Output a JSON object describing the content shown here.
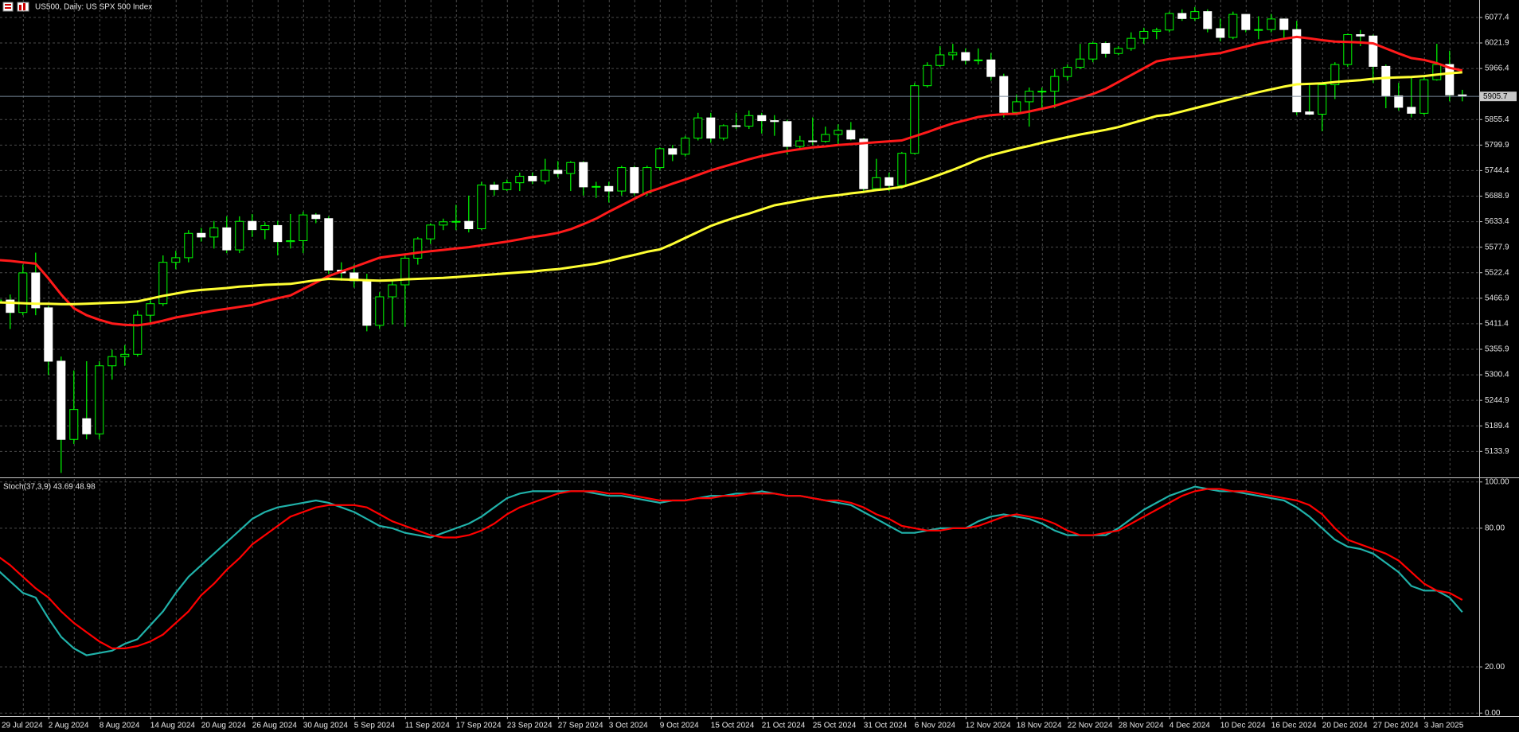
{
  "chart_data": [
    {
      "type": "candlestick",
      "title": "US500, Daily:  US SPX 500 Index",
      "categories": [
        "29 Jul 2024",
        null,
        null,
        null,
        "2 Aug 2024",
        null,
        null,
        null,
        "8 Aug 2024",
        null,
        null,
        null,
        "14 Aug 2024",
        null,
        null,
        null,
        "20 Aug 2024",
        null,
        null,
        null,
        "26 Aug 2024",
        null,
        null,
        null,
        "30 Aug 2024",
        null,
        null,
        null,
        "5 Sep 2024",
        null,
        null,
        null,
        "11 Sep 2024",
        null,
        null,
        null,
        "17 Sep 2024",
        null,
        null,
        null,
        "23 Sep 2024",
        null,
        null,
        null,
        "27 Sep 2024",
        null,
        null,
        null,
        "3 Oct 2024",
        null,
        null,
        null,
        "9 Oct 2024",
        null,
        null,
        null,
        "15 Oct 2024",
        null,
        null,
        null,
        "21 Oct 2024",
        null,
        null,
        null,
        "25 Oct 2024",
        null,
        null,
        null,
        "31 Oct 2024",
        null,
        null,
        null,
        "6 Nov 2024",
        null,
        null,
        null,
        "12 Nov 2024",
        null,
        null,
        null,
        "18 Nov 2024",
        null,
        null,
        null,
        "22 Nov 2024",
        null,
        null,
        null,
        "28 Nov 2024",
        null,
        null,
        null,
        "4 Dec 2024",
        null,
        null,
        null,
        "10 Dec 2024",
        null,
        null,
        null,
        "16 Dec 2024",
        null,
        null,
        null,
        "20 Dec 2024",
        null,
        null,
        null,
        "27 Dec 2024",
        null,
        null,
        null,
        "3 Jan 2025",
        null,
        null,
        null
      ],
      "open": [
        5460,
        5463,
        5436,
        5522,
        5446,
        5330,
        5160,
        5205,
        5172,
        5320,
        5340,
        5345,
        5430,
        5455,
        5545,
        5555,
        5608,
        5600,
        5620,
        5572,
        5634,
        5616,
        5625,
        5590,
        5592,
        5648,
        5640,
        5528,
        5522,
        5505,
        5408,
        5470,
        5496,
        5554,
        5596,
        5626,
        5633,
        5634,
        5618,
        5713,
        5703,
        5718,
        5732,
        5722,
        5745,
        5738,
        5762,
        5709,
        5710,
        5700,
        5751,
        5696,
        5751,
        5792,
        5780,
        5815,
        5859,
        5815,
        5842,
        5841,
        5864,
        5853,
        5851,
        5797,
        5809,
        5808,
        5823,
        5832,
        5813,
        5705,
        5729,
        5712,
        5782,
        5929,
        5973,
        5996,
        6001,
        5984,
        5985,
        5949,
        5871,
        5894,
        5917,
        5917,
        5949,
        5969,
        5987,
        6021,
        5999,
        6010,
        6032,
        6047,
        6050,
        6086,
        6075,
        6090,
        6053,
        6034,
        6084,
        6051,
        6051,
        6074,
        6051,
        5872,
        5867,
        5931,
        5975,
        6040,
        6037,
        5971,
        5907,
        5882,
        5869,
        5942,
        5975,
        5909
      ],
      "high": [
        5480,
        5475,
        5540,
        5566,
        5450,
        5340,
        5310,
        5330,
        5330,
        5355,
        5365,
        5440,
        5465,
        5560,
        5570,
        5615,
        5620,
        5635,
        5645,
        5645,
        5650,
        5632,
        5635,
        5650,
        5655,
        5652,
        5645,
        5545,
        5540,
        5520,
        5480,
        5505,
        5560,
        5600,
        5630,
        5640,
        5670,
        5690,
        5720,
        5720,
        5725,
        5740,
        5740,
        5770,
        5765,
        5765,
        5765,
        5720,
        5720,
        5755,
        5755,
        5755,
        5795,
        5800,
        5820,
        5870,
        5870,
        5845,
        5870,
        5875,
        5870,
        5865,
        5855,
        5820,
        5860,
        5840,
        5845,
        5850,
        5815,
        5770,
        5740,
        5785,
        5935,
        5980,
        6015,
        6020,
        6010,
        6010,
        6000,
        5955,
        5910,
        5925,
        5925,
        5965,
        5975,
        6020,
        6025,
        6025,
        6015,
        6045,
        6055,
        6055,
        6090,
        6095,
        6100,
        6095,
        6075,
        6090,
        6085,
        6080,
        6085,
        6075,
        6070,
        5935,
        5935,
        5980,
        6042,
        6050,
        6040,
        5975,
        5935,
        5950,
        5950,
        6020,
        6005,
        5920
      ],
      "low": [
        5440,
        5400,
        5430,
        5430,
        5300,
        5087,
        5150,
        5160,
        5160,
        5290,
        5320,
        5340,
        5410,
        5450,
        5530,
        5545,
        5590,
        5575,
        5565,
        5565,
        5600,
        5595,
        5560,
        5575,
        5565,
        5630,
        5520,
        5505,
        5490,
        5395,
        5400,
        5410,
        5405,
        5540,
        5585,
        5615,
        5615,
        5610,
        5615,
        5690,
        5700,
        5700,
        5715,
        5715,
        5730,
        5700,
        5690,
        5685,
        5675,
        5690,
        5690,
        5690,
        5745,
        5765,
        5775,
        5810,
        5805,
        5810,
        5835,
        5835,
        5825,
        5820,
        5780,
        5790,
        5800,
        5805,
        5800,
        5810,
        5700,
        5700,
        5700,
        5705,
        5780,
        5925,
        5970,
        5985,
        5975,
        5975,
        5940,
        5860,
        5865,
        5840,
        5880,
        5880,
        5940,
        5965,
        5980,
        5990,
        5995,
        6005,
        6020,
        6030,
        6045,
        6070,
        6070,
        6045,
        6025,
        6030,
        6045,
        6030,
        6045,
        6030,
        5865,
        5865,
        5830,
        5900,
        5970,
        6015,
        5935,
        5880,
        5875,
        5860,
        5865,
        5940,
        5895,
        5895
      ],
      "close": [
        5463,
        5436,
        5522,
        5446,
        5330,
        5160,
        5225,
        5172,
        5320,
        5340,
        5345,
        5430,
        5455,
        5545,
        5555,
        5608,
        5600,
        5620,
        5572,
        5634,
        5616,
        5625,
        5590,
        5592,
        5648,
        5640,
        5528,
        5522,
        5505,
        5408,
        5470,
        5496,
        5554,
        5596,
        5626,
        5633,
        5634,
        5618,
        5713,
        5703,
        5718,
        5732,
        5722,
        5745,
        5738,
        5762,
        5709,
        5710,
        5700,
        5751,
        5696,
        5751,
        5792,
        5780,
        5815,
        5859,
        5815,
        5842,
        5841,
        5864,
        5853,
        5851,
        5797,
        5809,
        5808,
        5823,
        5832,
        5813,
        5705,
        5729,
        5712,
        5782,
        5929,
        5973,
        5996,
        6001,
        5984,
        5985,
        5949,
        5871,
        5894,
        5917,
        5917,
        5949,
        5969,
        5987,
        6021,
        5999,
        6010,
        6032,
        6047,
        6050,
        6086,
        6075,
        6090,
        6053,
        6034,
        6084,
        6051,
        6051,
        6074,
        6051,
        5872,
        5867,
        5931,
        5975,
        6040,
        6037,
        5971,
        5907,
        5882,
        5869,
        5942,
        5975,
        5909,
        5906
      ],
      "up_color": "#000000",
      "down_color": "#ffffff",
      "wick_color": "#00ff00",
      "series": [
        {
          "color": "#ff1a1a",
          "values": [
            5550,
            5548,
            5545,
            5542,
            5510,
            5475,
            5445,
            5430,
            5420,
            5412,
            5409,
            5408,
            5412,
            5418,
            5425,
            5430,
            5435,
            5440,
            5444,
            5448,
            5452,
            5460,
            5467,
            5473,
            5487,
            5501,
            5515,
            5525,
            5535,
            5545,
            5555,
            5559,
            5562,
            5566,
            5569,
            5572,
            5575,
            5578,
            5582,
            5586,
            5590,
            5595,
            5600,
            5604,
            5609,
            5617,
            5628,
            5640,
            5655,
            5669,
            5683,
            5697,
            5706,
            5716,
            5725,
            5735,
            5745,
            5753,
            5761,
            5769,
            5776,
            5782,
            5787,
            5791,
            5795,
            5797,
            5800,
            5802,
            5804,
            5806,
            5808,
            5810,
            5819,
            5828,
            5838,
            5847,
            5854,
            5861,
            5865,
            5867,
            5868,
            5873,
            5879,
            5885,
            5894,
            5902,
            5911,
            5922,
            5937,
            5952,
            5967,
            5982,
            5987,
            5990,
            5993,
            5997,
            6000,
            6007,
            6014,
            6021,
            6026,
            6031,
            6035,
            6032,
            6028,
            6025,
            6024,
            6023,
            6021,
            6010,
            5999,
            5989,
            5985,
            5978,
            5968,
            5962
          ]
        },
        {
          "color": "#ffff33",
          "values": [
            5458,
            5457,
            5456,
            5455,
            5455,
            5454,
            5454,
            5455,
            5456,
            5457,
            5458,
            5460,
            5466,
            5472,
            5477,
            5482,
            5485,
            5487,
            5489,
            5492,
            5494,
            5496,
            5497,
            5498,
            5502,
            5506,
            5509,
            5508,
            5507,
            5506,
            5505,
            5506,
            5508,
            5509,
            5510,
            5511,
            5513,
            5515,
            5517,
            5519,
            5521,
            5523,
            5525,
            5528,
            5530,
            5534,
            5538,
            5542,
            5548,
            5555,
            5561,
            5568,
            5573,
            5585,
            5598,
            5611,
            5624,
            5634,
            5643,
            5651,
            5660,
            5669,
            5674,
            5679,
            5684,
            5688,
            5691,
            5695,
            5698,
            5702,
            5705,
            5709,
            5717,
            5726,
            5736,
            5746,
            5757,
            5769,
            5778,
            5785,
            5792,
            5798,
            5805,
            5811,
            5817,
            5823,
            5828,
            5833,
            5839,
            5847,
            5855,
            5863,
            5866,
            5873,
            5880,
            5887,
            5894,
            5901,
            5908,
            5915,
            5921,
            5927,
            5932,
            5933,
            5934,
            5937,
            5939,
            5941,
            5944,
            5946,
            5947,
            5948,
            5950,
            5953,
            5956,
            5958
          ]
        }
      ],
      "last_price": 5905.7,
      "ylim": [
        5079.1,
        6115.3
      ],
      "yticks": [
        6077.4,
        6021.9,
        5966.4,
        5855.4,
        5799.9,
        5744.4,
        5688.9,
        5633.4,
        5577.9,
        5522.4,
        5466.9,
        5411.4,
        5355.9,
        5300.4,
        5244.9,
        5189.4,
        5133.9
      ],
      "grid": true
    },
    {
      "type": "line",
      "title": "Stoch(37,3,9) 43.69 48.98",
      "series": [
        {
          "color": "#20b2aa",
          "values": [
            62,
            57,
            52,
            50,
            41,
            33,
            28,
            25,
            26,
            27,
            30,
            32,
            38,
            44,
            52,
            59,
            64,
            69,
            74,
            79,
            84,
            87,
            89,
            90,
            91,
            92,
            91,
            89,
            87,
            84,
            81,
            80,
            78,
            77,
            76,
            78,
            80,
            82,
            85,
            89,
            93,
            95,
            96,
            96,
            96,
            96,
            96,
            95,
            94,
            94,
            93,
            92,
            91,
            92,
            92,
            93,
            94,
            94,
            95,
            95,
            96,
            95,
            94,
            94,
            93,
            92,
            91,
            90,
            87,
            84,
            81,
            78,
            78,
            79,
            80,
            80,
            80,
            83,
            85,
            86,
            85,
            84,
            82,
            79,
            77,
            77,
            77,
            77,
            80,
            84,
            88,
            91,
            94,
            96,
            98,
            97,
            96,
            96,
            95,
            94,
            93,
            92,
            89,
            85,
            80,
            75,
            72,
            71,
            69,
            65,
            61,
            55,
            53,
            53,
            50,
            43.69
          ]
        },
        {
          "color": "#ff0000",
          "values": [
            68,
            64,
            59,
            54,
            50,
            44,
            39,
            35,
            31,
            28,
            28,
            29,
            31,
            34,
            39,
            44,
            51,
            56,
            62,
            67,
            73,
            77,
            81,
            85,
            87,
            89,
            90,
            90,
            90,
            89,
            86,
            83,
            81,
            79,
            77,
            76,
            76,
            77,
            79,
            82,
            86,
            89,
            91,
            93,
            95,
            96,
            96,
            96,
            95,
            95,
            94,
            93,
            92,
            92,
            92,
            93,
            93,
            94,
            94,
            95,
            95,
            95,
            94,
            94,
            93,
            92,
            92,
            91,
            89,
            86,
            84,
            81,
            80,
            79,
            79,
            80,
            80,
            81,
            83,
            85,
            86,
            85,
            84,
            82,
            79,
            77,
            77,
            78,
            79,
            82,
            85,
            88,
            91,
            94,
            96,
            97,
            97,
            96,
            96,
            95,
            94,
            93,
            92,
            90,
            86,
            80,
            75,
            73,
            71,
            69,
            66,
            61,
            56,
            53,
            52,
            48.98
          ]
        }
      ],
      "ylim": [
        -1.3,
        101.3
      ],
      "yticks": [
        {
          "value": 100,
          "label": "100.00"
        },
        {
          "value": 80,
          "label": "80.00"
        },
        {
          "value": 20,
          "label": "20.00"
        },
        {
          "value": 0,
          "label": "0.00"
        }
      ],
      "grid": true
    }
  ]
}
